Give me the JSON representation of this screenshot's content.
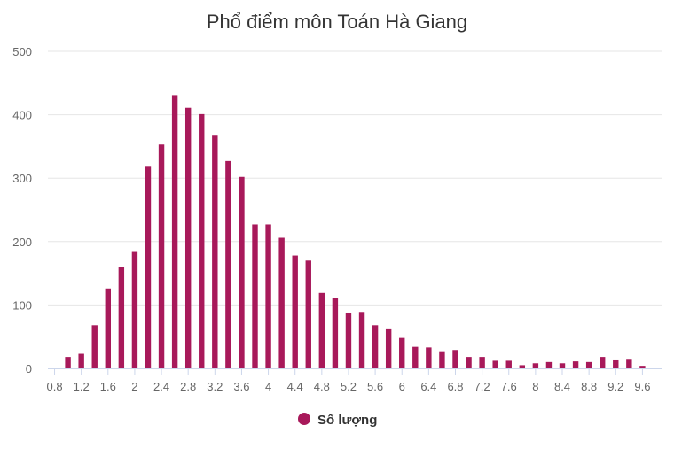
{
  "chart_data": {
    "type": "bar",
    "title": "Phổ điểm môn Toán Hà Giang",
    "xlabel": "",
    "ylabel": "",
    "ylim": [
      0,
      500
    ],
    "y_ticks": [
      "0",
      "100",
      "200",
      "300",
      "400",
      "500"
    ],
    "x_ticks": [
      "0.8",
      "1.2",
      "1.6",
      "2",
      "2.4",
      "2.8",
      "3.2",
      "3.6",
      "4",
      "4.4",
      "4.8",
      "5.2",
      "5.6",
      "6",
      "6.4",
      "6.8",
      "7.2",
      "7.6",
      "8",
      "8.4",
      "8.8",
      "9.2",
      "9.6"
    ],
    "grid": true,
    "legend_position": "bottom-center",
    "series": [
      {
        "name": "Số lượng",
        "color": "#a8195a",
        "x": [
          0.8,
          1.0,
          1.2,
          1.4,
          1.6,
          1.8,
          2.0,
          2.2,
          2.4,
          2.6,
          2.8,
          3.0,
          3.2,
          3.4,
          3.6,
          3.8,
          4.0,
          4.2,
          4.4,
          4.6,
          4.8,
          5.0,
          5.2,
          5.4,
          5.6,
          5.8,
          6.0,
          6.2,
          6.4,
          6.6,
          6.8,
          7.0,
          7.2,
          7.4,
          7.6,
          7.8,
          8.0,
          8.2,
          8.4,
          8.6,
          8.8,
          9.0,
          9.2,
          9.4,
          9.6
        ],
        "values": [
          0,
          18,
          23,
          68,
          126,
          160,
          185,
          318,
          353,
          431,
          411,
          401,
          367,
          327,
          302,
          227,
          227,
          206,
          178,
          170,
          119,
          111,
          88,
          89,
          68,
          63,
          48,
          34,
          33,
          27,
          29,
          18,
          18,
          12,
          12,
          5,
          8,
          10,
          8,
          11,
          10,
          18,
          14,
          15,
          4
        ]
      }
    ]
  }
}
